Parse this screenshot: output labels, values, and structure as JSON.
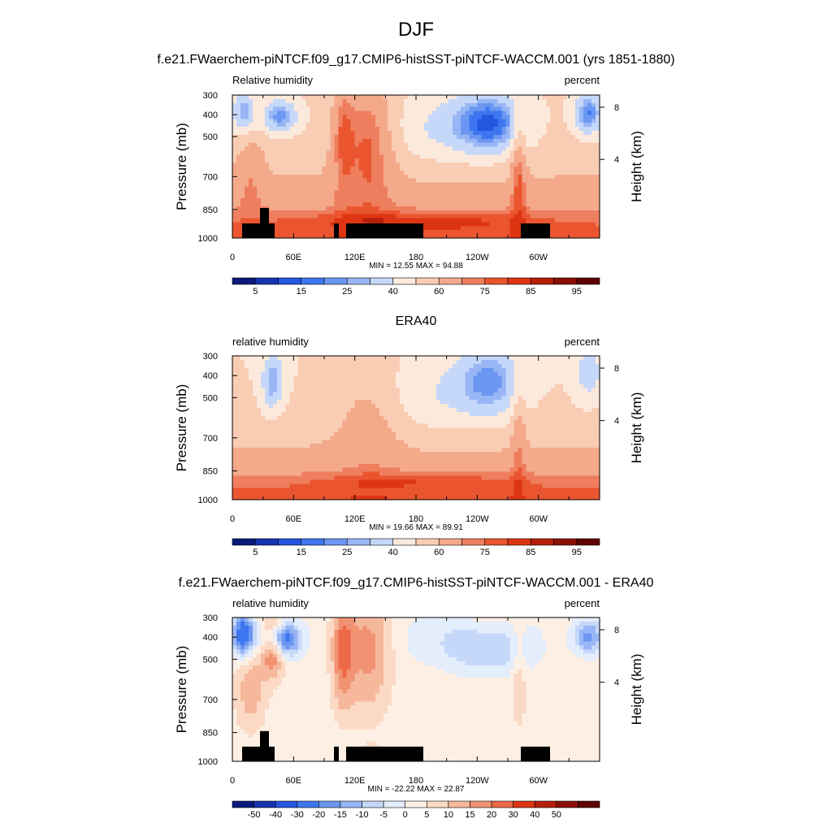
{
  "figure": {
    "title": "DJF"
  },
  "colors": {
    "rh_levels": [
      "#0a1a7a",
      "#1633b0",
      "#2456e0",
      "#3d76f0",
      "#6b97f2",
      "#98b6f5",
      "#c6d8f9",
      "#fbe9dc",
      "#f9cdb4",
      "#f4a98b",
      "#ef7e5e",
      "#ea5530",
      "#dd3512",
      "#b51f09",
      "#8a1005",
      "#5e0202"
    ],
    "diff_levels": [
      "#0a1a7a",
      "#1633b0",
      "#2456e0",
      "#3d76f0",
      "#6b97f2",
      "#98b6f5",
      "#c6d8f9",
      "#e4edfb",
      "#fdefe3",
      "#fbd9c4",
      "#f6b89c",
      "#f19373",
      "#ec6a48",
      "#dd3512",
      "#b51f09",
      "#8a1005",
      "#5e0202"
    ],
    "topography": "#000000"
  },
  "chart_data": [
    {
      "type": "heatmap",
      "subtitle": "f.e21.FWaerchem-piNTCF.f09_g17.CMIP6-histSST-piNTCF-WACCM.001 (yrs 1851-1880)",
      "left_label": "Relative humidity",
      "right_label": "percent",
      "ylabel": "Pressure (mb)",
      "ylabel_right": "Height (km)",
      "y_ticks": [
        "300",
        "400",
        "500",
        "700",
        "850",
        "1000"
      ],
      "y_right_ticks": [
        "8",
        "4"
      ],
      "x_ticks": [
        "0",
        "60E",
        "120E",
        "180",
        "120W",
        "60W"
      ],
      "min_label": "MIN =  12.55  MAX =  94.88",
      "colorbar_labels": [
        "5",
        "15",
        "25",
        "40",
        "60",
        "75",
        "85",
        "95"
      ],
      "field": "model",
      "topography": true
    },
    {
      "type": "heatmap",
      "subtitle": "ERA40",
      "left_label": "relative humidity",
      "right_label": "percent",
      "ylabel": "Pressure (mb)",
      "ylabel_right": "Height (km)",
      "y_ticks": [
        "300",
        "400",
        "500",
        "700",
        "850",
        "1000"
      ],
      "y_right_ticks": [
        "8",
        "4"
      ],
      "x_ticks": [
        "0",
        "60E",
        "120E",
        "180",
        "120W",
        "60W"
      ],
      "min_label": "MIN =  19.66  MAX =  89.91",
      "colorbar_labels": [
        "5",
        "15",
        "25",
        "40",
        "60",
        "75",
        "85",
        "95"
      ],
      "field": "obs",
      "topography": false
    },
    {
      "type": "heatmap",
      "subtitle": "f.e21.FWaerchem-piNTCF.f09_g17.CMIP6-histSST-piNTCF-WACCM.001 - ERA40",
      "left_label": "relative humidity",
      "right_label": "percent",
      "ylabel": "Pressure (mb)",
      "ylabel_right": "Height (km)",
      "y_ticks": [
        "300",
        "400",
        "500",
        "700",
        "850",
        "1000"
      ],
      "y_right_ticks": [
        "8",
        "4"
      ],
      "x_ticks": [
        "0",
        "60E",
        "120E",
        "180",
        "120W",
        "60W"
      ],
      "min_label": "MIN = -22.22  MAX =  22.87",
      "colorbar_labels": [
        "-50",
        "-40",
        "-30",
        "-20",
        "-15",
        "-10",
        "-5",
        "0",
        "5",
        "10",
        "15",
        "20",
        "30",
        "40",
        "50"
      ],
      "field": "diff",
      "topography": true
    }
  ]
}
